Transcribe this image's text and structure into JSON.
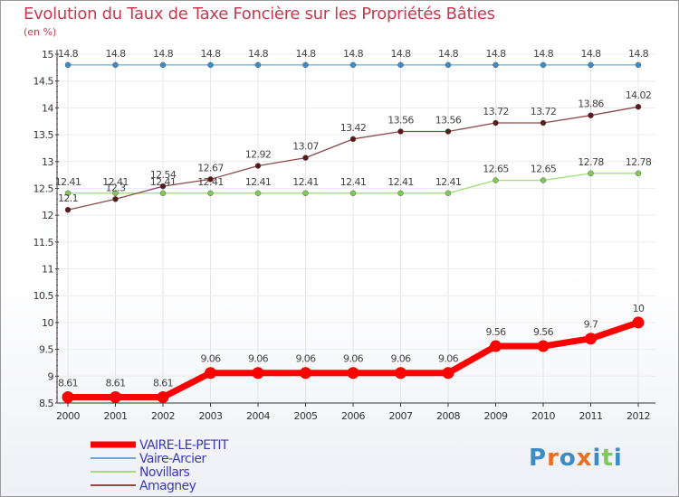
{
  "chart_data": {
    "type": "line",
    "title": "Evolution du Taux de Taxe Foncière sur les Propriétés Bâties",
    "ylabel": "(en %)",
    "xlabel": "",
    "ylim": [
      8.5,
      15
    ],
    "yticks": [
      8.5,
      9,
      9.5,
      10,
      10.5,
      11,
      11.5,
      12,
      12.5,
      13,
      13.5,
      14,
      14.5,
      15
    ],
    "categories": [
      "2000",
      "2001",
      "2002",
      "2003",
      "2004",
      "2005",
      "2006",
      "2007",
      "2008",
      "2009",
      "2010",
      "2011",
      "2012"
    ],
    "series": [
      {
        "name": "Vaire-Arcier",
        "color": "#6fa8d6",
        "point_color": "#3d8cc6",
        "labels": [
          "14.8",
          "14.8",
          "14.8",
          "14.8",
          "14.8",
          "14.8",
          "14.8",
          "14.8",
          "14.8",
          "14.8",
          "14.8",
          "14.8",
          "14.8"
        ],
        "values": [
          14.8,
          14.8,
          14.8,
          14.8,
          14.8,
          14.8,
          14.8,
          14.8,
          14.8,
          14.8,
          14.8,
          14.8,
          14.8
        ]
      },
      {
        "name": "Novillars",
        "color": "#a6dc7c",
        "point_color": "#7fc95a",
        "labels": [
          "12.41",
          "12.41",
          "12.41",
          "12.41",
          "12.41",
          "12.41",
          "12.41",
          "12.41",
          "12.41",
          "12.65",
          "12.65",
          "12.78",
          "12.78"
        ],
        "values": [
          12.41,
          12.41,
          12.41,
          12.41,
          12.41,
          12.41,
          12.41,
          12.41,
          12.41,
          12.65,
          12.65,
          12.78,
          12.78
        ]
      },
      {
        "name": "Amagney",
        "color": "#8b4b4b",
        "point_color": "#5a1a1a",
        "labels": [
          "12.1",
          "12.3",
          "12.54",
          "12.67",
          "12.92",
          "13.07",
          "13.42",
          "13.56",
          "13.56",
          "13.72",
          "13.72",
          "13.86",
          "14.02"
        ],
        "values": [
          12.1,
          12.3,
          12.54,
          12.67,
          12.92,
          13.07,
          13.42,
          13.56,
          13.56,
          13.72,
          13.72,
          13.86,
          14.02
        ]
      },
      {
        "name": "VAIRE-LE-PETIT",
        "color": "#ff0000",
        "point_color": "#ff0000",
        "labels": [
          "8.61",
          "8.61",
          "8.61",
          "9.06",
          "9.06",
          "9.06",
          "9.06",
          "9.06",
          "9.06",
          "9.56",
          "9.56",
          "9.7",
          "10"
        ],
        "values": [
          8.61,
          8.61,
          8.61,
          9.06,
          9.06,
          9.06,
          9.06,
          9.06,
          9.06,
          9.56,
          9.56,
          9.7,
          10
        ]
      }
    ],
    "legend": [
      "VAIRE-LE-PETIT",
      "Vaire-Arcier",
      "Novillars",
      "Amagney"
    ],
    "legend_colors": [
      "#ff0000",
      "#6fa8d6",
      "#a6dc7c",
      "#8b4b4b"
    ],
    "legend_position": "bottom-left"
  },
  "logo": {
    "text": "Proxiti",
    "letter_colors": [
      "#3d8cc6",
      "#e86f24",
      "#3d8cc6",
      "#e86f24",
      "#3d8cc6",
      "#7fc95a",
      "#3d8cc6"
    ]
  }
}
